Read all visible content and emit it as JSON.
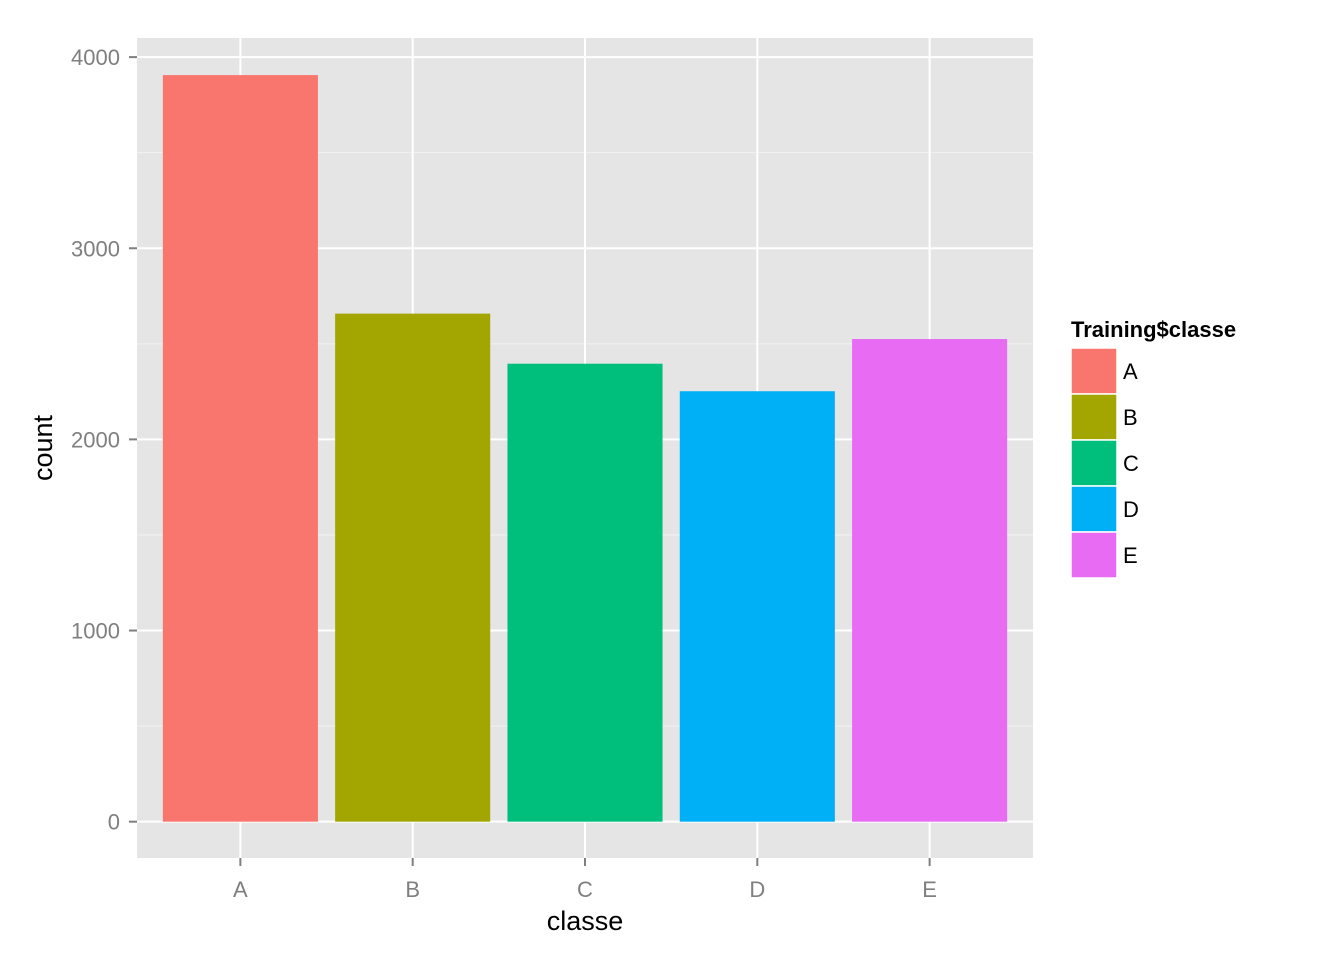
{
  "chart_data": {
    "type": "bar",
    "xlabel": "classe",
    "ylabel": "count",
    "categories": [
      "A",
      "B",
      "C",
      "D",
      "E"
    ],
    "values": [
      3906,
      2658,
      2396,
      2252,
      2525
    ],
    "colors": [
      "#F8766D",
      "#A3A500",
      "#00BF7D",
      "#00B0F6",
      "#E76BF3"
    ],
    "ylim": [
      -190,
      4100
    ],
    "yticks": [
      0,
      1000,
      2000,
      3000,
      4000
    ],
    "ytick_labels": [
      "0",
      "1000",
      "2000",
      "3000",
      "4000"
    ],
    "grid": true,
    "panel_background": "#E5E5E5",
    "grid_color": "#FFFFFF",
    "legend": {
      "title": "Training$classe",
      "position": "right",
      "entries": [
        "A",
        "B",
        "C",
        "D",
        "E"
      ]
    }
  }
}
